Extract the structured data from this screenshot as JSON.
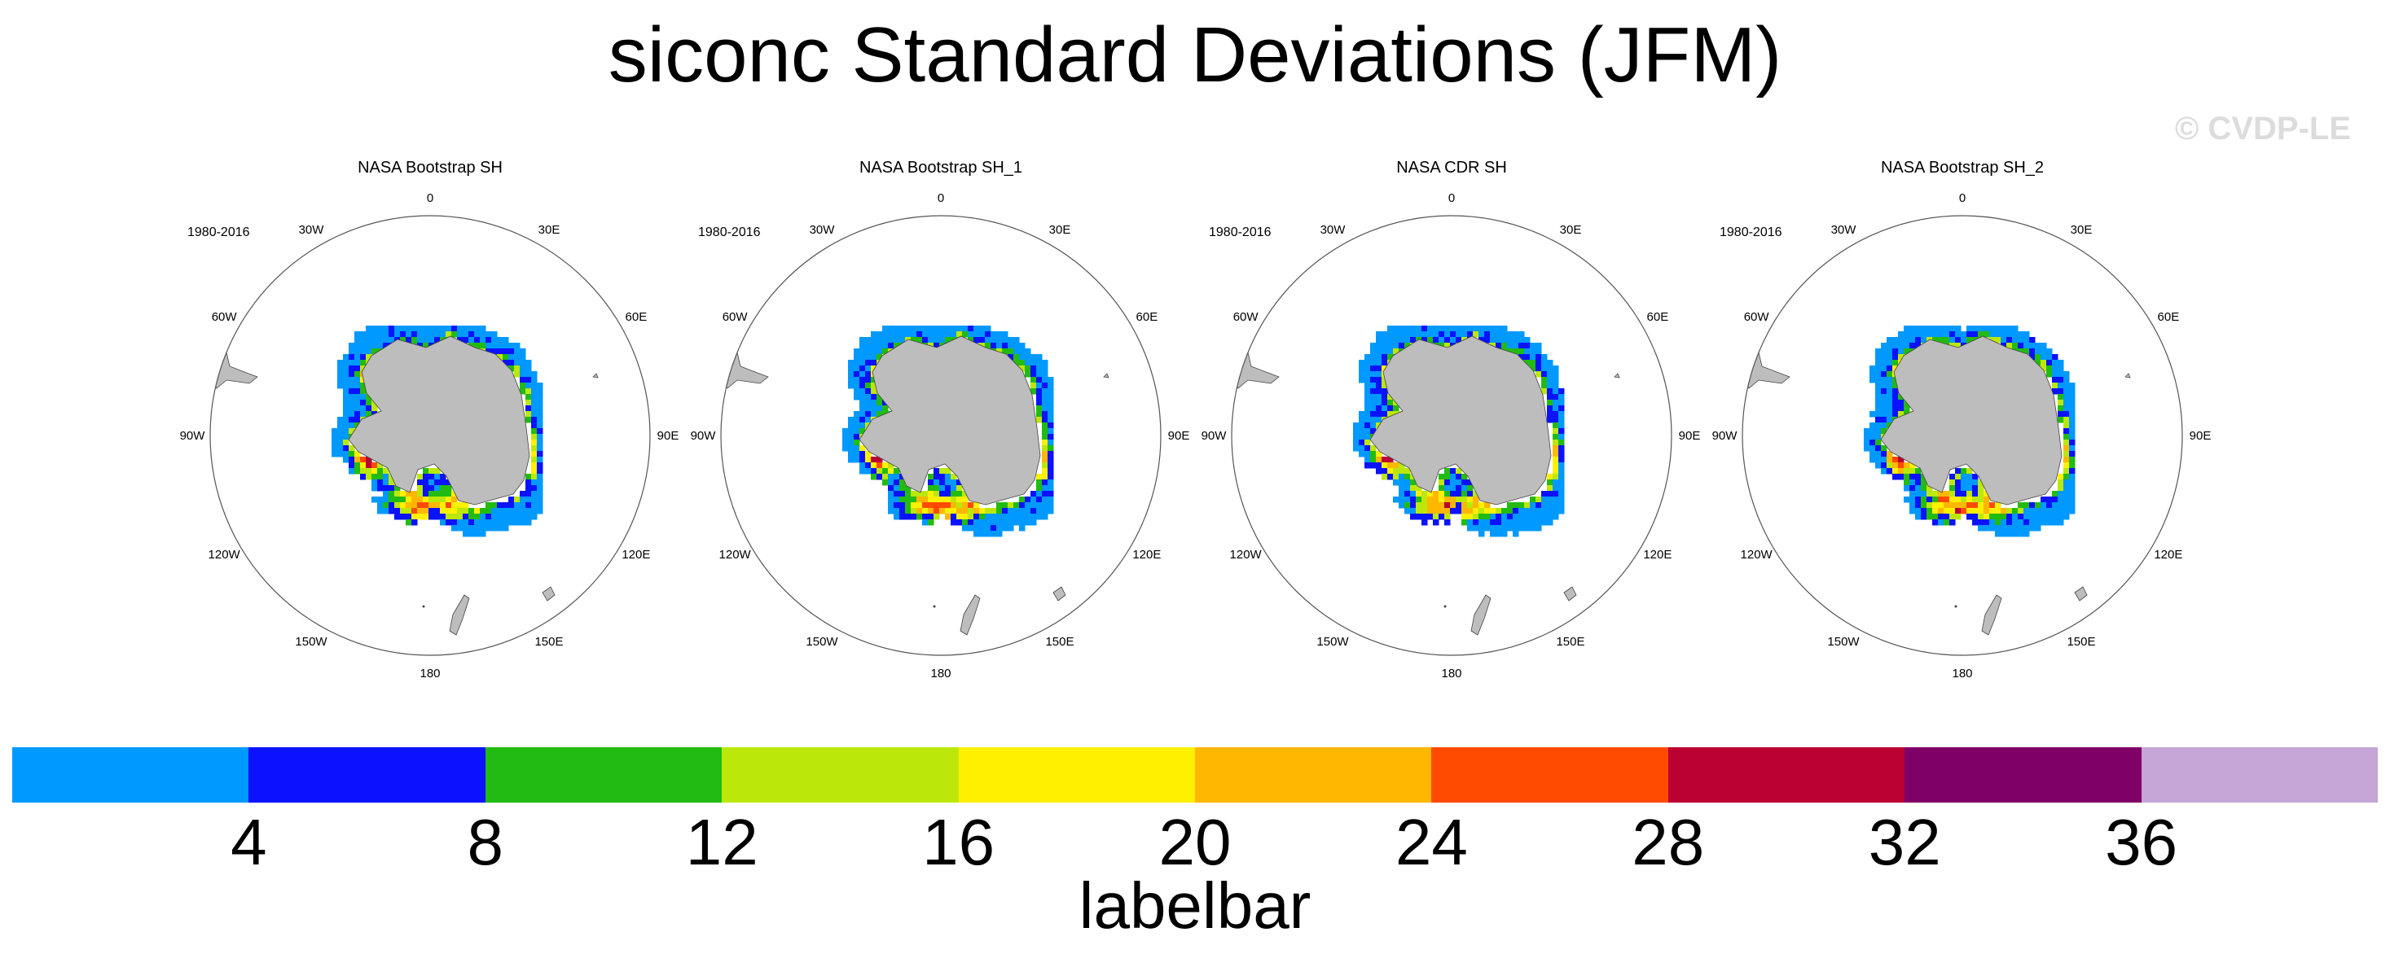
{
  "title": "siconc Standard Deviations (JFM)",
  "watermark": "© CVDP-LE",
  "panels": [
    {
      "title": "NASA Bootstrap SH",
      "period": "1980-2016"
    },
    {
      "title": "NASA Bootstrap SH_1",
      "period": "1980-2016"
    },
    {
      "title": "NASA CDR SH",
      "period": "1980-2016"
    },
    {
      "title": "NASA Bootstrap SH_2",
      "period": "1980-2016"
    }
  ],
  "lon_labels": [
    "0",
    "30E",
    "60E",
    "90E",
    "120E",
    "150E",
    "180",
    "150W",
    "120W",
    "90W",
    "60W",
    "30W"
  ],
  "labelbar": {
    "title": "labelbar",
    "colors": [
      "#0099ff",
      "#0a12ff",
      "#22bb11",
      "#bbe80a",
      "#fff000",
      "#ffb700",
      "#ff4a00",
      "#bb0033",
      "#7f0066",
      "#c6a6d6"
    ],
    "ticks": [
      "4",
      "8",
      "12",
      "16",
      "20",
      "24",
      "28",
      "32",
      "36"
    ]
  }
}
